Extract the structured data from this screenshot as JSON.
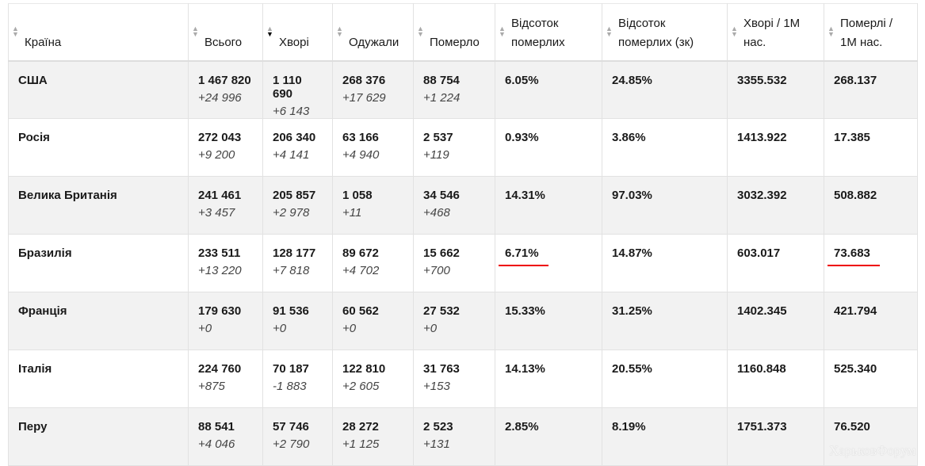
{
  "headers": [
    "Країна",
    "Всього",
    "Хворі",
    "Одужали",
    "Померло",
    "Відсоток померлих",
    "Відсоток померлих (зк)",
    "Хворі / 1М нас.",
    "Померлі / 1М нас."
  ],
  "sorted_column": 2,
  "rows": [
    {
      "country": "США",
      "total": "1 467 820",
      "total_d": "+24 996",
      "active": "1 110 690",
      "active_d": "+6 143",
      "rec": "268 376",
      "rec_d": "+17 629",
      "dead": "88 754",
      "dead_d": "+1 224",
      "pct": "6.05%",
      "pct_c": "24.85%",
      "per_m": "3355.532",
      "dead_m": "268.137"
    },
    {
      "country": "Росія",
      "total": "272 043",
      "total_d": "+9 200",
      "active": "206 340",
      "active_d": "+4 141",
      "rec": "63 166",
      "rec_d": "+4 940",
      "dead": "2 537",
      "dead_d": "+119",
      "pct": "0.93%",
      "pct_c": "3.86%",
      "per_m": "1413.922",
      "dead_m": "17.385"
    },
    {
      "country": "Велика Британія",
      "total": "241 461",
      "total_d": "+3 457",
      "active": "205 857",
      "active_d": "+2 978",
      "rec": "1 058",
      "rec_d": "+11",
      "dead": "34 546",
      "dead_d": "+468",
      "pct": "14.31%",
      "pct_c": "97.03%",
      "per_m": "3032.392",
      "dead_m": "508.882"
    },
    {
      "country": "Бразилія",
      "total": "233 511",
      "total_d": "+13 220",
      "active": "128 177",
      "active_d": "+7 818",
      "rec": "89 672",
      "rec_d": "+4 702",
      "dead": "15 662",
      "dead_d": "+700",
      "pct": "6.71%",
      "pct_c": "14.87%",
      "per_m": "603.017",
      "dead_m": "73.683"
    },
    {
      "country": "Франція",
      "total": "179 630",
      "total_d": "+0",
      "active": "91 536",
      "active_d": "+0",
      "rec": "60 562",
      "rec_d": "+0",
      "dead": "27 532",
      "dead_d": "+0",
      "pct": "15.33%",
      "pct_c": "31.25%",
      "per_m": "1402.345",
      "dead_m": "421.794"
    },
    {
      "country": "Італія",
      "total": "224 760",
      "total_d": "+875",
      "active": "70 187",
      "active_d": "-1 883",
      "rec": "122 810",
      "rec_d": "+2 605",
      "dead": "31 763",
      "dead_d": "+153",
      "pct": "14.13%",
      "pct_c": "20.55%",
      "per_m": "1160.848",
      "dead_m": "525.340"
    },
    {
      "country": "Перу",
      "total": "88 541",
      "total_d": "+4 046",
      "active": "57 746",
      "active_d": "+2 790",
      "rec": "28 272",
      "rec_d": "+1 125",
      "dead": "2 523",
      "dead_d": "+131",
      "pct": "2.85%",
      "pct_c": "8.19%",
      "per_m": "1751.373",
      "dead_m": "76.520"
    }
  ],
  "highlight_row": 3,
  "watermark": "ХарьковФорум",
  "colors": {
    "underline": "#e00000",
    "row_alt": "#f2f2f2"
  }
}
